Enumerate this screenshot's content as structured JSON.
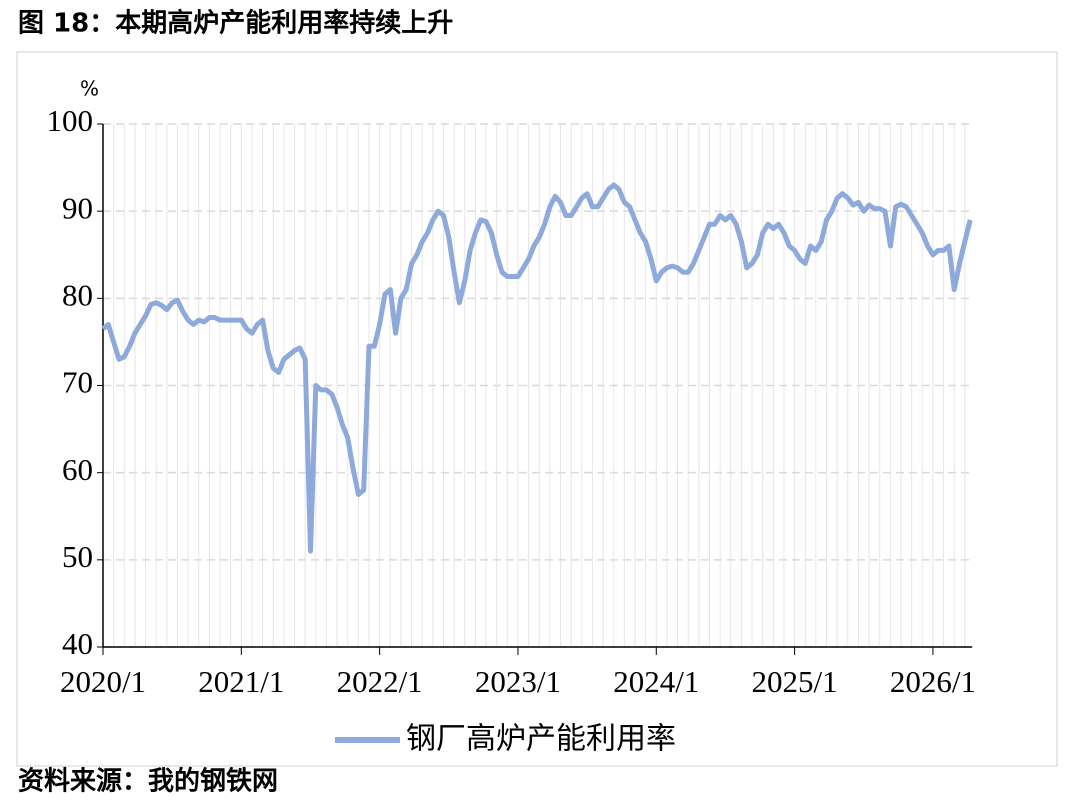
{
  "chart_data": {
    "type": "line",
    "title": "图 18：本期高炉产能利用率持续上升",
    "source": "资料来源：我的钢铁网",
    "y_unit": "%",
    "categories": [
      "2020/1",
      null,
      null,
      null,
      null,
      null,
      null,
      null,
      null,
      null,
      null,
      null,
      null,
      null,
      null,
      null,
      null,
      null,
      null,
      null,
      null,
      null,
      null,
      null,
      null,
      null,
      "2021/1",
      null,
      null,
      null,
      null,
      null,
      null,
      null,
      null,
      null,
      null,
      null,
      null,
      null,
      null,
      null,
      null,
      null,
      null,
      null,
      null,
      null,
      null,
      null,
      null,
      null,
      "2022/1",
      null,
      null,
      null,
      null,
      null,
      null,
      null,
      null,
      null,
      null,
      null,
      null,
      null,
      null,
      null,
      null,
      null,
      null,
      null,
      null,
      null,
      null,
      null,
      null,
      null,
      "2023/1",
      null,
      null,
      null,
      null,
      null,
      null,
      null,
      null,
      null,
      null,
      null,
      null,
      null,
      null,
      null,
      null,
      null,
      null,
      null,
      null,
      null,
      null,
      null,
      null,
      null,
      "2024/1",
      null,
      null,
      null,
      null,
      null,
      null,
      null,
      null,
      null,
      null,
      null,
      null,
      null,
      null,
      null,
      null,
      null,
      null,
      null,
      null,
      null,
      null,
      null,
      null,
      null,
      "2025/1",
      null,
      null,
      null,
      null,
      null,
      null,
      null,
      null,
      null,
      null,
      null,
      null,
      null,
      null,
      null,
      null,
      null,
      null,
      null,
      null,
      null,
      null,
      null,
      null,
      null,
      "2026/1",
      null,
      null,
      null,
      null,
      null,
      null,
      null
    ],
    "series": [
      {
        "name": "钢厂高炉产能利用率",
        "color": "#8eaadb",
        "values": [
          76.5,
          77,
          75,
          73,
          73.3,
          74.5,
          76,
          77,
          78,
          79.3,
          79.5,
          79.2,
          78.7,
          79.5,
          79.8,
          78.5,
          77.5,
          77,
          77.5,
          77.3,
          77.8,
          77.8,
          77.5,
          77.5,
          77.5,
          77.5,
          77.5,
          76.5,
          76,
          77,
          77.5,
          74,
          72,
          71.5,
          73,
          73.5,
          74,
          74.3,
          73,
          51,
          70,
          69.5,
          69.5,
          69,
          67.5,
          65.5,
          64,
          60.5,
          57.5,
          58,
          74.5,
          74.5,
          77,
          80.5,
          81,
          76,
          80,
          81,
          84,
          85,
          86.5,
          87.5,
          89,
          90,
          89.5,
          87,
          83,
          79.5,
          82,
          85.5,
          87.5,
          89,
          88.8,
          87.5,
          85,
          83,
          82.5,
          82.5,
          82.5,
          83.5,
          84.5,
          86,
          87,
          88.5,
          90.5,
          91.7,
          91,
          89.5,
          89.5,
          90.5,
          91.5,
          92,
          90.5,
          90.5,
          91.5,
          92.5,
          93,
          92.5,
          91,
          90.5,
          89,
          87.5,
          86.5,
          84.5,
          82,
          83,
          83.5,
          83.7,
          83.5,
          83,
          83,
          84,
          85.5,
          87,
          88.5,
          88.5,
          89.5,
          89,
          89.5,
          88.5,
          86.5,
          83.5,
          84,
          85,
          87.5,
          88.5,
          88,
          88.5,
          87.5,
          86,
          85.5,
          84.5,
          84,
          86,
          85.5,
          86.5,
          89,
          90,
          91.5,
          92,
          91.5,
          90.7,
          91,
          90,
          90.7,
          90.3,
          90.3,
          90,
          86,
          90.5,
          90.8,
          90.5,
          89.5,
          88.5,
          87.5,
          86,
          85,
          85.5,
          85.5,
          86,
          81,
          84,
          86.5,
          89
        ]
      }
    ],
    "ylim": [
      40,
      100
    ],
    "yticks": [
      40,
      50,
      60,
      70,
      80,
      90,
      100
    ],
    "grid": true,
    "legend": "bottom"
  }
}
